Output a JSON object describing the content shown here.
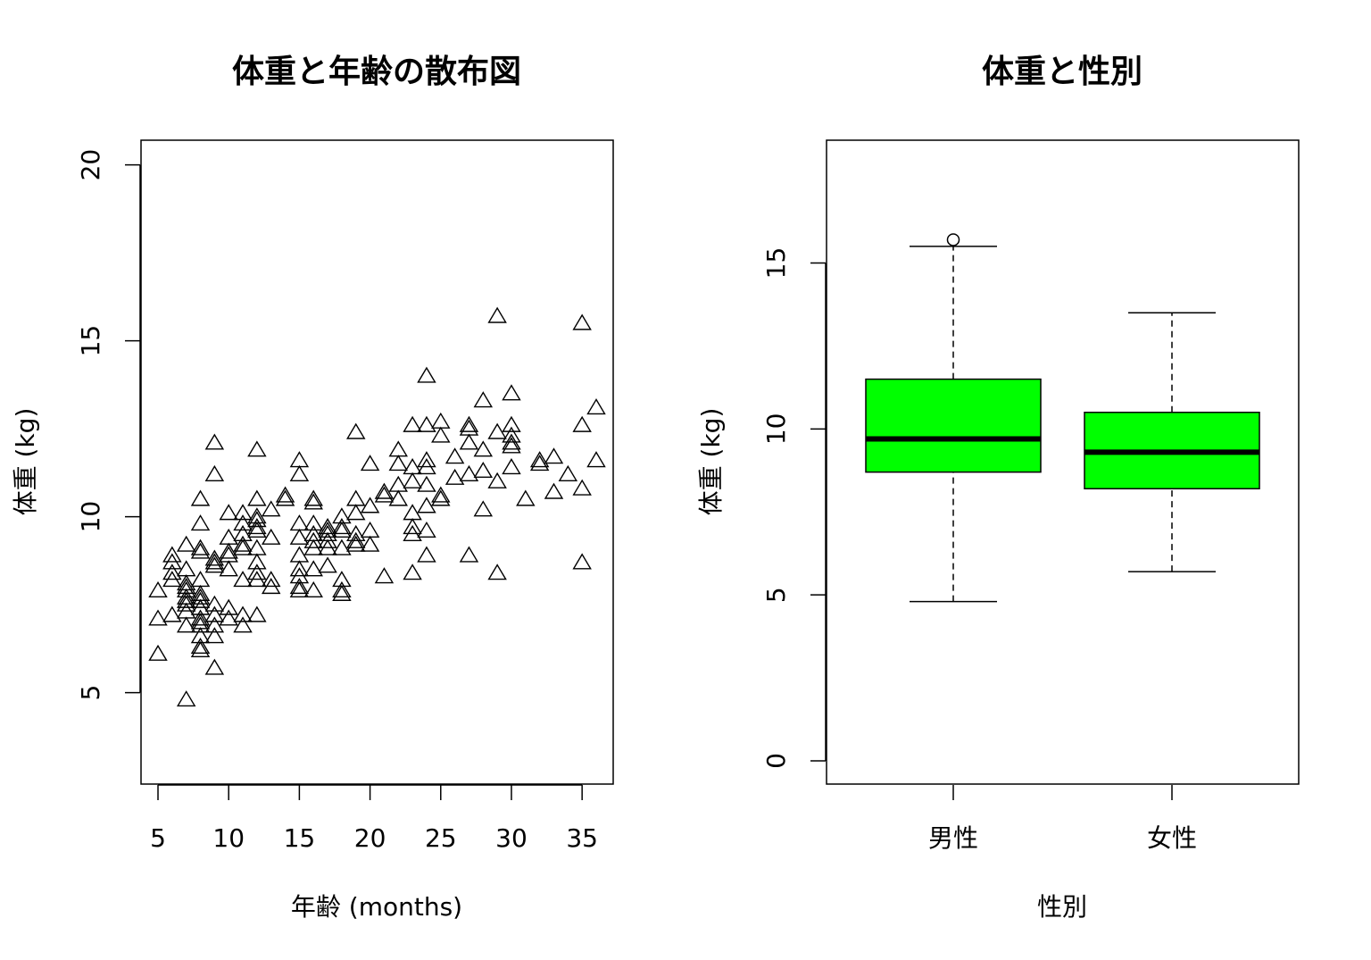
{
  "chart_data": [
    {
      "type": "scatter",
      "title": "体重と年齢の散布図",
      "xlabel": "年齢 (months)",
      "ylabel": "体重 (kg)",
      "xlim": [
        3.8,
        37.2
      ],
      "ylim": [
        2.4,
        20.7
      ],
      "xticks": [
        "5",
        "10",
        "15",
        "20",
        "25",
        "30",
        "35"
      ],
      "yticks": [
        "5",
        "10",
        "15",
        "20"
      ],
      "marker": "open-triangle",
      "points": [
        [
          5,
          6.1
        ],
        [
          5,
          7.1
        ],
        [
          5,
          7.9
        ],
        [
          6,
          7.2
        ],
        [
          6,
          8.2
        ],
        [
          6,
          8.4
        ],
        [
          6,
          8.7
        ],
        [
          6,
          8.9
        ],
        [
          7,
          4.8
        ],
        [
          7,
          6.9
        ],
        [
          7,
          7.3
        ],
        [
          7,
          7.5
        ],
        [
          7,
          7.6
        ],
        [
          7,
          7.7
        ],
        [
          7,
          7.9
        ],
        [
          7,
          8.0
        ],
        [
          7,
          8.1
        ],
        [
          7,
          8.5
        ],
        [
          7,
          9.2
        ],
        [
          8,
          6.2
        ],
        [
          8,
          6.3
        ],
        [
          8,
          6.6
        ],
        [
          8,
          6.9
        ],
        [
          8,
          7.0
        ],
        [
          8,
          7.1
        ],
        [
          8,
          7.4
        ],
        [
          8,
          7.6
        ],
        [
          8,
          7.7
        ],
        [
          8,
          7.8
        ],
        [
          8,
          8.2
        ],
        [
          8,
          9.0
        ],
        [
          8,
          9.1
        ],
        [
          8,
          9.8
        ],
        [
          8,
          10.5
        ],
        [
          9,
          5.7
        ],
        [
          9,
          6.6
        ],
        [
          9,
          6.9
        ],
        [
          9,
          7.2
        ],
        [
          9,
          7.5
        ],
        [
          9,
          8.6
        ],
        [
          9,
          8.7
        ],
        [
          9,
          8.8
        ],
        [
          9,
          11.2
        ],
        [
          9,
          12.1
        ],
        [
          10,
          7.1
        ],
        [
          10,
          7.4
        ],
        [
          10,
          8.5
        ],
        [
          10,
          8.9
        ],
        [
          10,
          9.0
        ],
        [
          10,
          9.4
        ],
        [
          10,
          10.1
        ],
        [
          11,
          6.9
        ],
        [
          11,
          7.2
        ],
        [
          11,
          8.2
        ],
        [
          11,
          9.1
        ],
        [
          11,
          9.2
        ],
        [
          11,
          9.5
        ],
        [
          11,
          9.8
        ],
        [
          11,
          10.1
        ],
        [
          12,
          7.2
        ],
        [
          12,
          8.2
        ],
        [
          12,
          8.4
        ],
        [
          12,
          8.7
        ],
        [
          12,
          9.1
        ],
        [
          12,
          9.6
        ],
        [
          12,
          9.7
        ],
        [
          12,
          9.9
        ],
        [
          12,
          10.0
        ],
        [
          12,
          10.5
        ],
        [
          12,
          11.9
        ],
        [
          13,
          8.0
        ],
        [
          13,
          8.2
        ],
        [
          13,
          9.4
        ],
        [
          13,
          10.2
        ],
        [
          14,
          10.5
        ],
        [
          14,
          10.6
        ],
        [
          15,
          7.9
        ],
        [
          15,
          8.0
        ],
        [
          15,
          8.3
        ],
        [
          15,
          8.5
        ],
        [
          15,
          8.9
        ],
        [
          15,
          9.4
        ],
        [
          15,
          9.8
        ],
        [
          15,
          11.2
        ],
        [
          15,
          11.6
        ],
        [
          16,
          7.9
        ],
        [
          16,
          8.5
        ],
        [
          16,
          9.1
        ],
        [
          16,
          9.3
        ],
        [
          16,
          9.5
        ],
        [
          16,
          9.8
        ],
        [
          16,
          10.4
        ],
        [
          16,
          10.5
        ],
        [
          17,
          8.6
        ],
        [
          17,
          9.1
        ],
        [
          17,
          9.3
        ],
        [
          17,
          9.5
        ],
        [
          17,
          9.6
        ],
        [
          17,
          9.7
        ],
        [
          18,
          7.8
        ],
        [
          18,
          7.9
        ],
        [
          18,
          8.2
        ],
        [
          18,
          9.1
        ],
        [
          18,
          9.6
        ],
        [
          18,
          9.7
        ],
        [
          18,
          10.0
        ],
        [
          19,
          9.2
        ],
        [
          19,
          9.3
        ],
        [
          19,
          9.5
        ],
        [
          19,
          10.1
        ],
        [
          19,
          10.5
        ],
        [
          19,
          12.4
        ],
        [
          20,
          9.2
        ],
        [
          20,
          9.6
        ],
        [
          20,
          10.3
        ],
        [
          20,
          11.5
        ],
        [
          21,
          8.3
        ],
        [
          21,
          10.6
        ],
        [
          21,
          10.7
        ],
        [
          22,
          10.5
        ],
        [
          22,
          10.9
        ],
        [
          22,
          11.5
        ],
        [
          22,
          11.9
        ],
        [
          23,
          8.4
        ],
        [
          23,
          9.5
        ],
        [
          23,
          9.7
        ],
        [
          23,
          10.1
        ],
        [
          23,
          11.0
        ],
        [
          23,
          11.4
        ],
        [
          23,
          12.6
        ],
        [
          24,
          8.9
        ],
        [
          24,
          9.6
        ],
        [
          24,
          10.3
        ],
        [
          24,
          10.9
        ],
        [
          24,
          11.4
        ],
        [
          24,
          11.6
        ],
        [
          24,
          12.6
        ],
        [
          24,
          14.0
        ],
        [
          25,
          10.5
        ],
        [
          25,
          10.6
        ],
        [
          25,
          12.3
        ],
        [
          25,
          12.7
        ],
        [
          26,
          11.1
        ],
        [
          26,
          11.7
        ],
        [
          27,
          8.9
        ],
        [
          27,
          11.2
        ],
        [
          27,
          12.1
        ],
        [
          27,
          12.5
        ],
        [
          27,
          12.6
        ],
        [
          28,
          10.2
        ],
        [
          28,
          11.3
        ],
        [
          28,
          11.9
        ],
        [
          28,
          13.3
        ],
        [
          29,
          8.4
        ],
        [
          29,
          11.0
        ],
        [
          29,
          12.4
        ],
        [
          29,
          15.7
        ],
        [
          30,
          11.4
        ],
        [
          30,
          12.0
        ],
        [
          30,
          12.1
        ],
        [
          30,
          12.3
        ],
        [
          30,
          12.6
        ],
        [
          30,
          13.5
        ],
        [
          31,
          10.5
        ],
        [
          32,
          11.5
        ],
        [
          32,
          11.6
        ],
        [
          33,
          10.7
        ],
        [
          33,
          11.7
        ],
        [
          34,
          11.2
        ],
        [
          35,
          8.7
        ],
        [
          35,
          10.8
        ],
        [
          35,
          12.6
        ],
        [
          35,
          15.5
        ],
        [
          36,
          11.6
        ],
        [
          36,
          13.1
        ]
      ]
    },
    {
      "type": "box",
      "title": "体重と性別",
      "xlabel": "性別",
      "ylabel": "体重 (kg)",
      "ylim": [
        -0.7,
        18.7
      ],
      "yticks": [
        "0",
        "5",
        "10",
        "15"
      ],
      "box_color": "#00ff00",
      "categories": [
        "男性",
        "女性"
      ],
      "boxes": [
        {
          "name": "男性",
          "whisker_low": 4.8,
          "q1": 8.7,
          "median": 9.7,
          "q3": 11.5,
          "whisker_high": 15.5,
          "outliers": [
            15.7
          ]
        },
        {
          "name": "女性",
          "whisker_low": 5.7,
          "q1": 8.2,
          "median": 9.3,
          "q3": 10.5,
          "whisker_high": 13.5,
          "outliers": []
        }
      ]
    }
  ]
}
